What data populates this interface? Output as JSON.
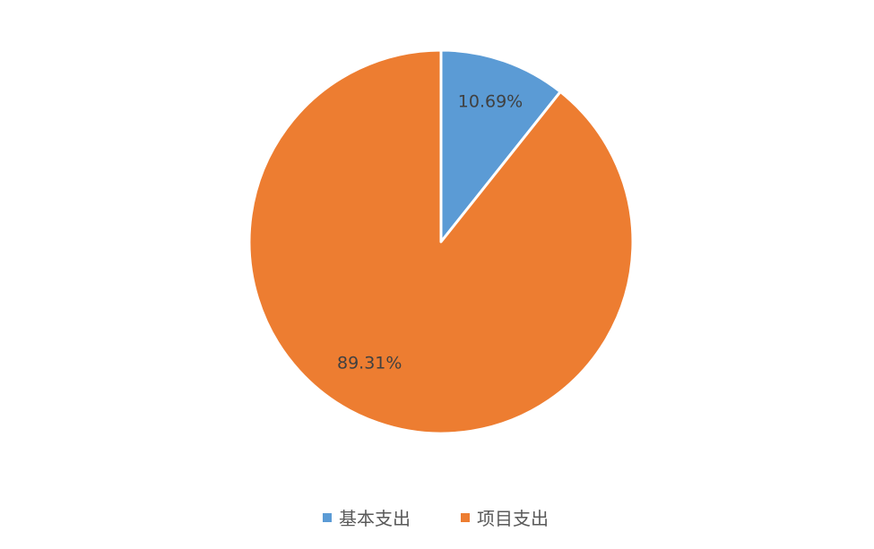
{
  "chart_data": {
    "type": "pie",
    "categories": [
      "基本支出",
      "项目支出"
    ],
    "values": [
      10.69,
      89.31
    ],
    "data_labels": [
      "10.69%",
      "89.31%"
    ],
    "colors": [
      "#5B9BD5",
      "#ED7D31"
    ],
    "start_angle": "top, clockwise",
    "legend_placement": "bottom",
    "legend": [
      "基本支出",
      "项目支出"
    ]
  }
}
